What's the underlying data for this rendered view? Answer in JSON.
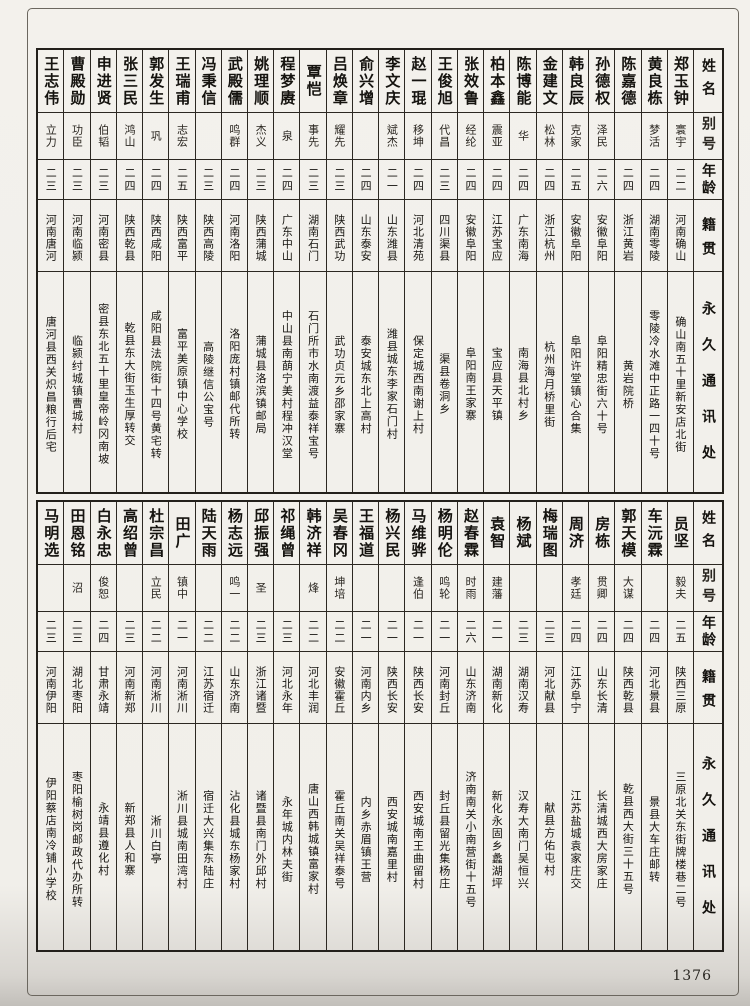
{
  "page": {
    "number": "1376"
  },
  "row_headers": {
    "name": "姓名",
    "alias": "别号",
    "age": "年龄",
    "origin": "籍贯",
    "address": "永久通讯处"
  },
  "tables": [
    {
      "people": [
        {
          "name": "郑玉钟",
          "alias": "寰宇",
          "age": "二二",
          "origin": "河南确山",
          "address": "确山南五十里新安店北街"
        },
        {
          "name": "黄良栋",
          "alias": "梦活",
          "age": "二四",
          "origin": "湖南零陵",
          "address": "零陵冷水滩中正路一四十号"
        },
        {
          "name": "陈嘉德",
          "alias": "",
          "age": "二四",
          "origin": "浙江黄岩",
          "address": "黄岩院桥"
        },
        {
          "name": "孙德权",
          "alias": "泽民",
          "age": "二六",
          "origin": "安徽阜阳",
          "address": "阜阳精忠街六十号"
        },
        {
          "name": "韩良辰",
          "alias": "克家",
          "age": "二五",
          "origin": "安徽阜阳",
          "address": "阜阳许堂镇心合集"
        },
        {
          "name": "金建文",
          "alias": "松林",
          "age": "二四",
          "origin": "浙江杭州",
          "address": "杭州海月桥里街"
        },
        {
          "name": "陈博能",
          "alias": "华",
          "age": "二四",
          "origin": "广东南海",
          "address": "南海县北村乡"
        },
        {
          "name": "柏本鑫",
          "alias": "震亚",
          "age": "二四",
          "origin": "江苏宝应",
          "address": "宝应县天平镇"
        },
        {
          "name": "张效鲁",
          "alias": "经纶",
          "age": "二四",
          "origin": "安徽阜阳",
          "address": "阜阳南王家寨"
        },
        {
          "name": "王俊旭",
          "alias": "代昌",
          "age": "二三",
          "origin": "四川渠县",
          "address": "渠县卷洞乡"
        },
        {
          "name": "赵一琨",
          "alias": "移坤",
          "age": "二四",
          "origin": "河北清苑",
          "address": "保定城西南谢上村"
        },
        {
          "name": "李文庆",
          "alias": "斌杰",
          "age": "二一",
          "origin": "山东潍县",
          "address": "潍县城东李家石门村"
        },
        {
          "name": "俞兴增",
          "alias": "",
          "age": "二四",
          "origin": "山东泰安",
          "address": "泰安城东北上高村"
        },
        {
          "name": "吕焕章",
          "alias": "耀先",
          "age": "二三",
          "origin": "陕西武功",
          "address": "武功贞元乡邵家寨"
        },
        {
          "name": "覃恺",
          "alias": "事先",
          "age": "二三",
          "origin": "湖南石门",
          "address": "石门所市水南渡益泰祥宝号"
        },
        {
          "name": "程梦赓",
          "alias": "泉",
          "age": "二四",
          "origin": "广东中山",
          "address": "中山县南蓢宁美村程冲汉堂"
        },
        {
          "name": "姚理顺",
          "alias": "杰义",
          "age": "二三",
          "origin": "陕西蒲城",
          "address": "蒲城县洛滨镇邮局"
        },
        {
          "name": "武殿儒",
          "alias": "鸣群",
          "age": "二四",
          "origin": "河南洛阳",
          "address": "洛阳庞村镇邮代所转"
        },
        {
          "name": "冯秉信",
          "alias": "",
          "age": "二三",
          "origin": "陕西高陵",
          "address": "高陵继信公宝号"
        },
        {
          "name": "王瑞甫",
          "alias": "志宏",
          "age": "二五",
          "origin": "陕西富平",
          "address": "富平美原镇中心学校"
        },
        {
          "name": "郭发生",
          "alias": "巩",
          "age": "二四",
          "origin": "陕西咸阳",
          "address": "咸阳县法院街十四号黄宅转"
        },
        {
          "name": "张三民",
          "alias": "鸿山",
          "age": "二四",
          "origin": "陕西乾县",
          "address": "乾县东大街玉生厚转交"
        },
        {
          "name": "申进贤",
          "alias": "伯韬",
          "age": "二三",
          "origin": "河南密县",
          "address": "密县东北五十里皇帝岭冈南坡"
        },
        {
          "name": "曹殿勋",
          "alias": "功臣",
          "age": "二三",
          "origin": "河南临颍",
          "address": "临颍纣城镇曹城村"
        },
        {
          "name": "王志伟",
          "alias": "立力",
          "age": "二三",
          "origin": "河南唐河",
          "address": "唐河县西关炽昌粮行后宅"
        }
      ]
    },
    {
      "people": [
        {
          "name": "员坚",
          "alias": "毅夫",
          "age": "二五",
          "origin": "陕西三原",
          "address": "三原北关东街牌楼巷二号"
        },
        {
          "name": "车沅霖",
          "alias": "",
          "age": "二四",
          "origin": "河北景县",
          "address": "景县大车庄邮转"
        },
        {
          "name": "郭天模",
          "alias": "大谋",
          "age": "二四",
          "origin": "陕西乾县",
          "address": "乾县西大街三十五号"
        },
        {
          "name": "房栋",
          "alias": "贯卿",
          "age": "二四",
          "origin": "山东长清",
          "address": "长清城西大房家庄"
        },
        {
          "name": "周济",
          "alias": "孝廷",
          "age": "二四",
          "origin": "江苏阜宁",
          "address": "江苏盐城袁家庄交"
        },
        {
          "name": "梅瑞图",
          "alias": "",
          "age": "二三",
          "origin": "河北献县",
          "address": "献县方佑屯村"
        },
        {
          "name": "杨斌",
          "alias": "",
          "age": "二三",
          "origin": "湖南汉寿",
          "address": "汉寿大南门吴恒兴"
        },
        {
          "name": "袁智",
          "alias": "建藩",
          "age": "二一",
          "origin": "湖南新化",
          "address": "新化永固乡蠡湖坪"
        },
        {
          "name": "赵春霖",
          "alias": "时雨",
          "age": "二六",
          "origin": "山东济南",
          "address": "济南南关小南营街十五号"
        },
        {
          "name": "杨明伦",
          "alias": "鸣轮",
          "age": "二一",
          "origin": "河南封丘",
          "address": "封丘县留光集杨庄"
        },
        {
          "name": "马维骅",
          "alias": "逢伯",
          "age": "二一",
          "origin": "陕西长安",
          "address": "西安城南王曲留村"
        },
        {
          "name": "杨兴民",
          "alias": "",
          "age": "二一",
          "origin": "陕西长安",
          "address": "西安城南嘉里村"
        },
        {
          "name": "王福道",
          "alias": "",
          "age": "二一",
          "origin": "河南内乡",
          "address": "内乡赤眉镇王营"
        },
        {
          "name": "吴春冈",
          "alias": "坤培",
          "age": "二二",
          "origin": "安徽霍丘",
          "address": "霍丘南关吴祥泰号"
        },
        {
          "name": "韩济祥",
          "alias": "烽",
          "age": "二二",
          "origin": "河北丰润",
          "address": "唐山西韩城镇富家村"
        },
        {
          "name": "祁绳曾",
          "alias": "",
          "age": "二三",
          "origin": "河北永年",
          "address": "永年城内林夫街"
        },
        {
          "name": "邱振强",
          "alias": "圣",
          "age": "二三",
          "origin": "浙江诸暨",
          "address": "诸暨县南门外邱村"
        },
        {
          "name": "杨志远",
          "alias": "鸣一",
          "age": "二二",
          "origin": "山东济南",
          "address": "沾化县城东杨家村"
        },
        {
          "name": "陆天雨",
          "alias": "",
          "age": "二二",
          "origin": "江苏宿迁",
          "address": "宿迁大兴集东陆庄"
        },
        {
          "name": "田广",
          "alias": "镇中",
          "age": "二一",
          "origin": "河南淅川",
          "address": "淅川县城南田湾村"
        },
        {
          "name": "杜宗昌",
          "alias": "立民",
          "age": "二二",
          "origin": "河南淅川",
          "address": "淅川白亭"
        },
        {
          "name": "高绍曾",
          "alias": "",
          "age": "二三",
          "origin": "河南新郑",
          "address": "新郑县人和寨"
        },
        {
          "name": "白永忠",
          "alias": "俊恕",
          "age": "二四",
          "origin": "甘肃永靖",
          "address": "永靖县遵化村"
        },
        {
          "name": "田恩铭",
          "alias": "沼",
          "age": "二三",
          "origin": "湖北枣阳",
          "address": "枣阳榆树岗邮政代办所转"
        },
        {
          "name": "马明选",
          "alias": "",
          "age": "二三",
          "origin": "河南伊阳",
          "address": "伊阳蔡店南冷铺小学校"
        }
      ]
    }
  ]
}
